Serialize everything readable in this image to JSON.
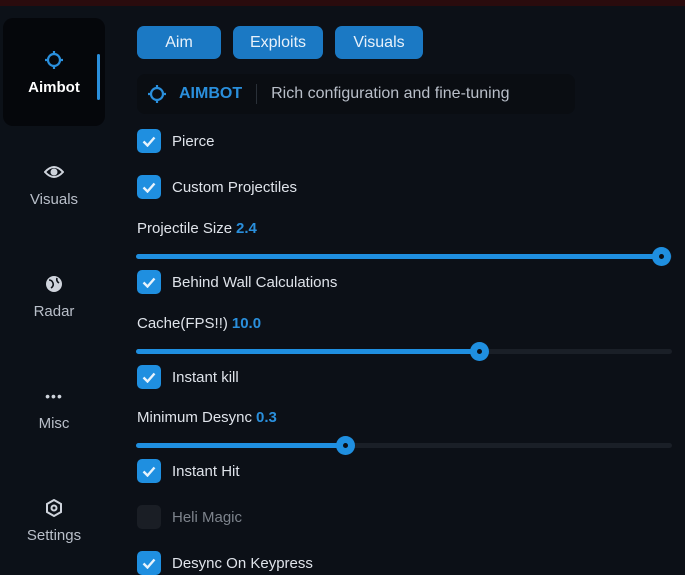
{
  "sidebar": {
    "items": [
      {
        "label": "Aimbot",
        "icon": "crosshair-icon",
        "active": true
      },
      {
        "label": "Visuals",
        "icon": "eye-icon"
      },
      {
        "label": "Radar",
        "icon": "globe-icon"
      },
      {
        "label": "Misc",
        "icon": "dots-icon"
      },
      {
        "label": "Settings",
        "icon": "gear-icon"
      }
    ]
  },
  "tabs": [
    "Aim",
    "Exploits",
    "Visuals"
  ],
  "header": {
    "title": "AIMBOT",
    "subtitle": "Rich configuration and fine-tuning"
  },
  "options": {
    "pierce": {
      "label": "Pierce",
      "checked": true
    },
    "custom_projectiles": {
      "label": "Custom Projectiles",
      "checked": true
    },
    "projectile_size": {
      "label": "Projectile Size",
      "value": "2.4",
      "fill_fraction": 0.98
    },
    "behind_wall": {
      "label": "Behind Wall Calculations",
      "checked": true
    },
    "cache": {
      "label": "Cache(FPS!!)",
      "value": "10.0",
      "fill_fraction": 0.64
    },
    "instant_kill": {
      "label": "Instant kill",
      "checked": true
    },
    "min_desync": {
      "label": "Minimum Desync",
      "value": "0.3",
      "fill_fraction": 0.39
    },
    "instant_hit": {
      "label": "Instant Hit",
      "checked": true
    },
    "heli_magic": {
      "label": "Heli Magic",
      "checked": false
    },
    "desync_keypress": {
      "label": "Desync On Keypress",
      "checked": true
    }
  },
  "colors": {
    "accent": "#1f8fe0",
    "background": "#0c1017"
  }
}
